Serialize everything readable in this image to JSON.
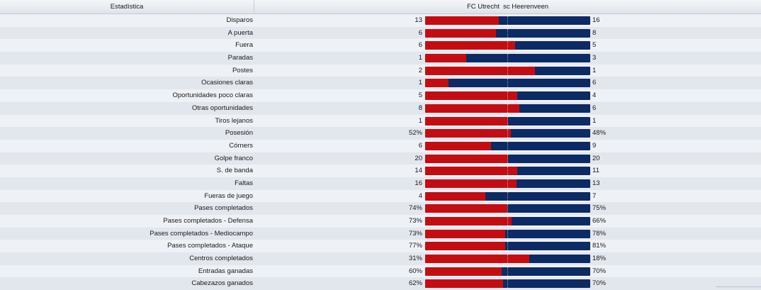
{
  "header": {
    "stat_label": "Estadística",
    "teams_label": "FC Utrecht  sc Heerenveen"
  },
  "colors": {
    "home": "#c40d12",
    "away": "#0c2a63"
  },
  "stats": [
    {
      "label": "Disparos",
      "home": "13",
      "away": "16",
      "home_share": 0.448
    },
    {
      "label": "A puerta",
      "home": "6",
      "away": "8",
      "home_share": 0.429
    },
    {
      "label": "Fuera",
      "home": "6",
      "away": "5",
      "home_share": 0.545
    },
    {
      "label": "Paradas",
      "home": "1",
      "away": "3",
      "home_share": 0.25
    },
    {
      "label": "Postes",
      "home": "2",
      "away": "1",
      "home_share": 0.667
    },
    {
      "label": "Ocasiones claras",
      "home": "1",
      "away": "6",
      "home_share": 0.143
    },
    {
      "label": "Oportunidades poco claras",
      "home": "5",
      "away": "4",
      "home_share": 0.556
    },
    {
      "label": "Otras oportunidades",
      "home": "8",
      "away": "6",
      "home_share": 0.571
    },
    {
      "label": "Tiros lejanos",
      "home": "1",
      "away": "1",
      "home_share": 0.5
    },
    {
      "label": "Posesión",
      "home": "52%",
      "away": "48%",
      "home_share": 0.52
    },
    {
      "label": "Córners",
      "home": "6",
      "away": "9",
      "home_share": 0.4
    },
    {
      "label": "Golpe franco",
      "home": "20",
      "away": "20",
      "home_share": 0.5
    },
    {
      "label": "S. de banda",
      "home": "14",
      "away": "11",
      "home_share": 0.56
    },
    {
      "label": "Faltas",
      "home": "16",
      "away": "13",
      "home_share": 0.552
    },
    {
      "label": "Fueras de juego",
      "home": "4",
      "away": "7",
      "home_share": 0.364
    },
    {
      "label": "Pases completados",
      "home": "74%",
      "away": "75%",
      "home_share": 0.497
    },
    {
      "label": "Pases completados - Defensa",
      "home": "73%",
      "away": "66%",
      "home_share": 0.525
    },
    {
      "label": "Pases completados - Mediocampo",
      "home": "73%",
      "away": "78%",
      "home_share": 0.483
    },
    {
      "label": "Pases completados - Ataque",
      "home": "77%",
      "away": "81%",
      "home_share": 0.487
    },
    {
      "label": "Centros completados",
      "home": "31%",
      "away": "18%",
      "home_share": 0.633
    },
    {
      "label": "Entradas ganadas",
      "home": "60%",
      "away": "70%",
      "home_share": 0.462
    },
    {
      "label": "Cabezazos ganados",
      "home": "62%",
      "away": "70%",
      "home_share": 0.47
    }
  ]
}
